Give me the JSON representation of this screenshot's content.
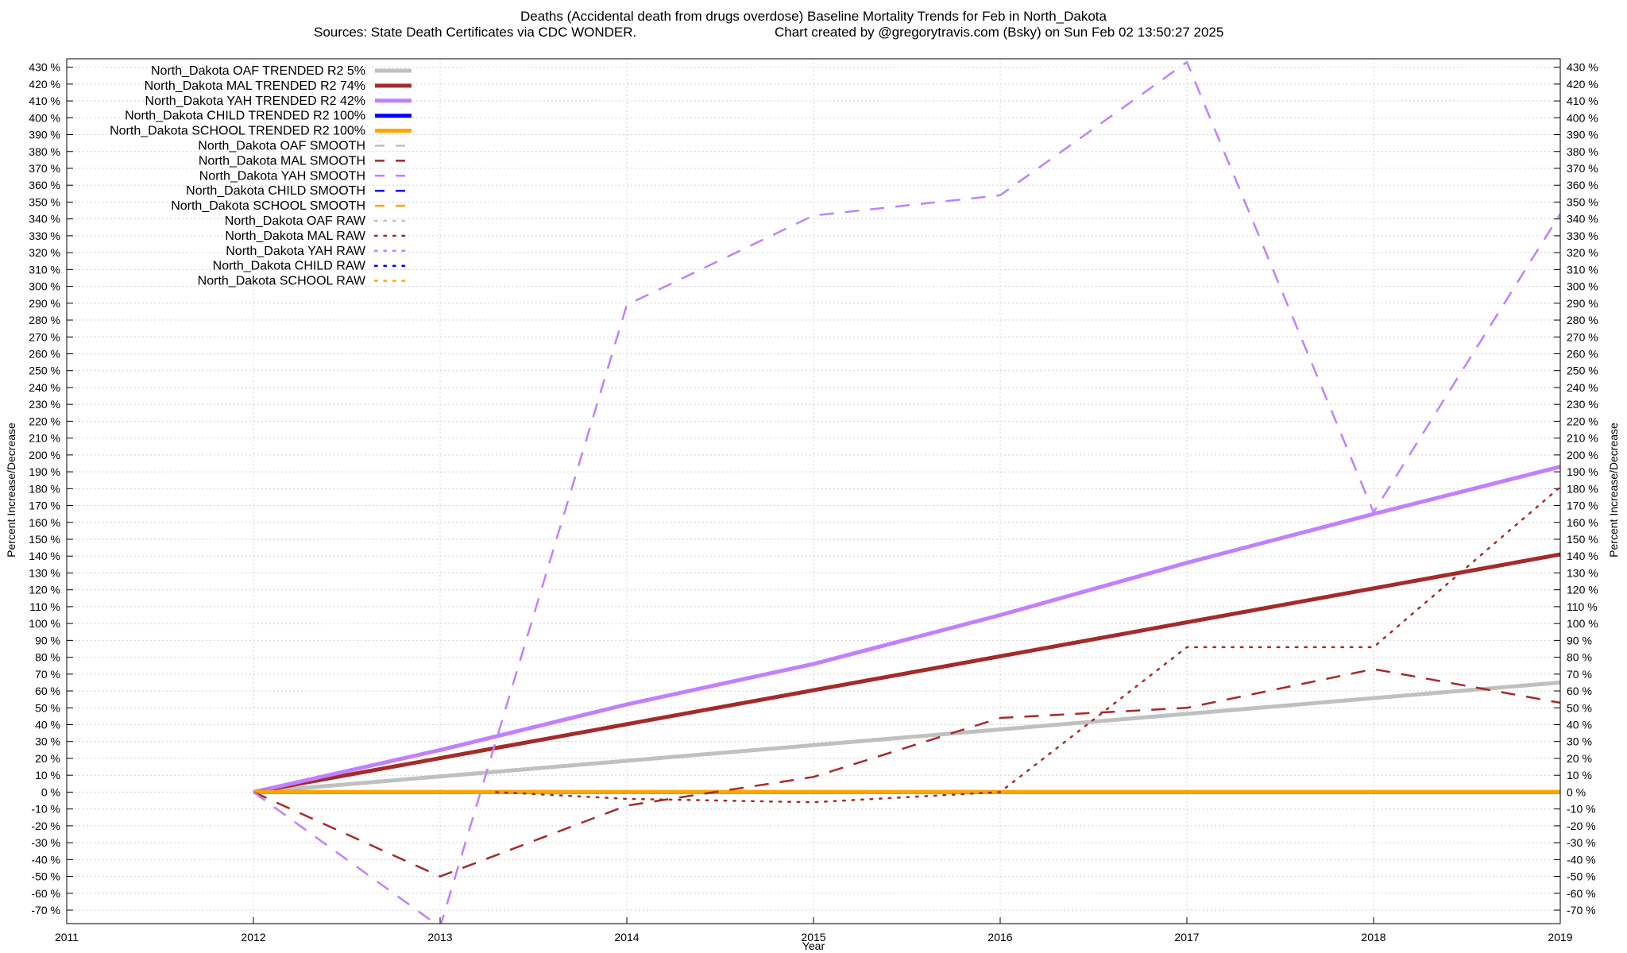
{
  "chart_data": {
    "type": "line",
    "title": "Deaths (Accidental death from drugs overdose)  Baseline Mortality Trends for Feb in North_Dakota",
    "subtitle_left": "Sources: State Death Certificates via CDC WONDER.",
    "subtitle_right": "Chart created by @gregorytravis.com (Bsky) on Sun Feb 02 13:50:27 2025",
    "xlabel": "Year",
    "ylabel": "Percent Increase/Decrease",
    "y2label": "Percent Increase/Decrease",
    "xlim": [
      2011,
      2019
    ],
    "ylim": [
      -78,
      435
    ],
    "x_ticks": [
      2011,
      2012,
      2013,
      2014,
      2015,
      2016,
      2017,
      2018,
      2019
    ],
    "y_tick_step": 10,
    "y_tick_suffix": " %",
    "grid": true,
    "legend_position": "top-left",
    "series": [
      {
        "name": "North_Dakota OAF TRENDED R2  5%",
        "style": "solid",
        "color": "#c0c0c0",
        "x": [
          2012,
          2019
        ],
        "y": [
          0,
          65
        ]
      },
      {
        "name": "North_Dakota MAL TRENDED R2  74%",
        "style": "solid",
        "color": "#a52a2a",
        "x": [
          2012,
          2019
        ],
        "y": [
          0,
          141
        ]
      },
      {
        "name": "North_Dakota YAH TRENDED R2  42%",
        "style": "solid",
        "color": "#c080ff",
        "x": [
          2012,
          2013,
          2014,
          2015,
          2016,
          2017,
          2018,
          2019
        ],
        "y": [
          0,
          25,
          52,
          76,
          105,
          136,
          165,
          193
        ]
      },
      {
        "name": "North_Dakota CHILD TRENDED R2 100%",
        "style": "solid",
        "color": "#0000ff",
        "x": [
          2012,
          2019
        ],
        "y": [
          0,
          0
        ]
      },
      {
        "name": "North_Dakota SCHOOL TRENDED R2 100%",
        "style": "solid",
        "color": "#ffa500",
        "x": [
          2012,
          2019
        ],
        "y": [
          0,
          0
        ]
      },
      {
        "name": "North_Dakota OAF SMOOTH",
        "style": "dashed",
        "color": "#c0c0c0",
        "x": [],
        "y": []
      },
      {
        "name": "North_Dakota MAL SMOOTH",
        "style": "dashed",
        "color": "#a52a2a",
        "x": [
          2012,
          2013,
          2014,
          2015,
          2016,
          2017,
          2018,
          2019
        ],
        "y": [
          0,
          -50,
          -8,
          9,
          44,
          50,
          73,
          53
        ]
      },
      {
        "name": "North_Dakota YAH SMOOTH",
        "style": "dashed",
        "color": "#c080ff",
        "x": [
          2012,
          2013,
          2014,
          2015,
          2016,
          2017,
          2018,
          2019
        ],
        "y": [
          0,
          -80,
          289,
          342,
          354,
          433,
          166,
          343
        ]
      },
      {
        "name": "North_Dakota CHILD SMOOTH",
        "style": "dashed",
        "color": "#0000ff",
        "x": [],
        "y": []
      },
      {
        "name": "North_Dakota SCHOOL SMOOTH",
        "style": "dashed",
        "color": "#ffa500",
        "x": [],
        "y": []
      },
      {
        "name": "North_Dakota OAF RAW",
        "style": "dotted",
        "color": "#c0c0c0",
        "x": [],
        "y": []
      },
      {
        "name": "North_Dakota MAL RAW",
        "style": "dotted",
        "color": "#a52a2a",
        "x": [
          2013.3,
          2014,
          2015,
          2016,
          2017,
          2018,
          2019
        ],
        "y": [
          0,
          -4,
          -6,
          0,
          86,
          86,
          181
        ]
      },
      {
        "name": "North_Dakota YAH RAW",
        "style": "dotted",
        "color": "#c080ff",
        "x": [],
        "y": []
      },
      {
        "name": "North_Dakota CHILD RAW",
        "style": "dotted",
        "color": "#0000ff",
        "x": [],
        "y": []
      },
      {
        "name": "North_Dakota SCHOOL RAW",
        "style": "dotted",
        "color": "#ffa500",
        "x": [],
        "y": []
      }
    ]
  }
}
